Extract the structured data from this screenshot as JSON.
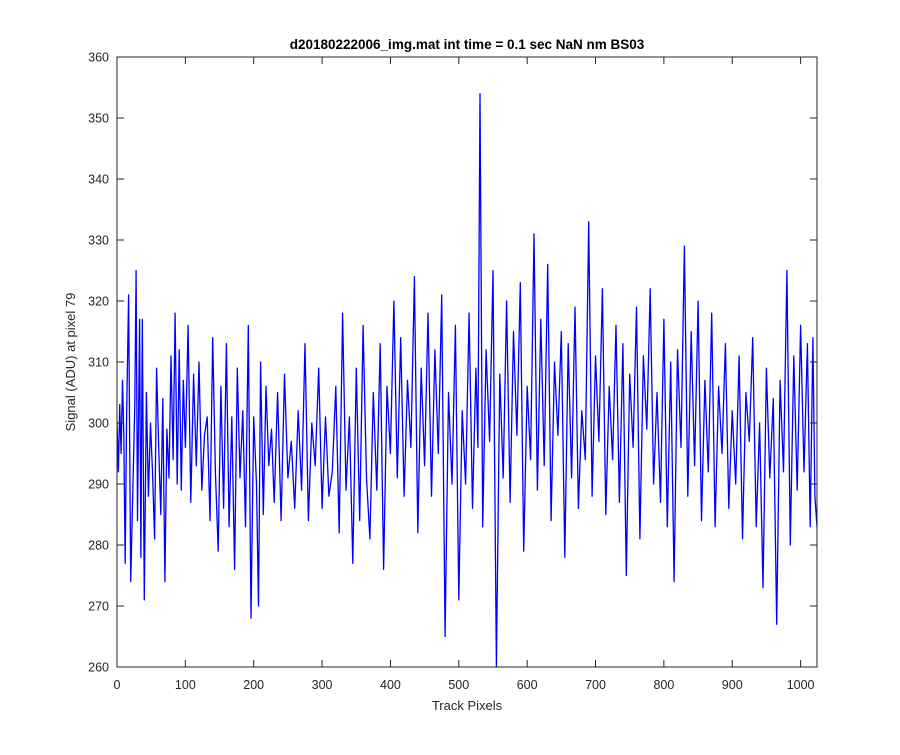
{
  "chart_data": {
    "type": "line",
    "title": "d20180222006_img.mat int time = 0.1 sec  NaN nm BS03",
    "xlabel": "Track Pixels",
    "ylabel": "Signal (ADU) at pixel 79",
    "xlim": [
      0,
      1024
    ],
    "ylim": [
      260,
      360
    ],
    "xticks": [
      0,
      100,
      200,
      300,
      400,
      500,
      600,
      700,
      800,
      900,
      1000
    ],
    "yticks": [
      260,
      270,
      280,
      290,
      300,
      310,
      320,
      330,
      340,
      350,
      360
    ],
    "grid": false,
    "legend": "none",
    "series": [
      {
        "color": "#0000ff",
        "x": [
          0,
          2,
          4,
          6,
          8,
          10,
          12,
          14,
          17,
          20,
          23,
          26,
          28,
          30,
          33,
          35,
          37,
          40,
          43,
          46,
          49,
          52,
          55,
          58,
          61,
          64,
          67,
          70,
          73,
          76,
          79,
          82,
          85,
          88,
          91,
          94,
          97,
          100,
          104,
          108,
          112,
          116,
          120,
          124,
          128,
          132,
          136,
          140,
          144,
          148,
          152,
          156,
          160,
          164,
          168,
          172,
          176,
          180,
          184,
          188,
          192,
          196,
          200,
          204,
          207,
          210,
          214,
          218,
          222,
          226,
          230,
          235,
          240,
          245,
          250,
          255,
          260,
          265,
          270,
          275,
          280,
          285,
          290,
          295,
          300,
          305,
          310,
          315,
          320,
          325,
          330,
          335,
          340,
          345,
          350,
          355,
          360,
          365,
          370,
          375,
          380,
          385,
          390,
          395,
          400,
          405,
          410,
          415,
          420,
          425,
          430,
          435,
          440,
          445,
          450,
          455,
          460,
          465,
          470,
          475,
          480,
          485,
          490,
          495,
          500,
          505,
          510,
          515,
          520,
          525,
          528,
          531,
          535,
          540,
          545,
          550,
          555,
          560,
          565,
          570,
          575,
          580,
          585,
          590,
          595,
          600,
          605,
          610,
          615,
          620,
          625,
          630,
          635,
          640,
          645,
          650,
          655,
          660,
          665,
          670,
          675,
          680,
          685,
          690,
          695,
          700,
          705,
          710,
          715,
          720,
          725,
          730,
          735,
          740,
          745,
          750,
          755,
          760,
          765,
          770,
          775,
          780,
          785,
          790,
          795,
          800,
          805,
          810,
          815,
          820,
          825,
          830,
          835,
          840,
          845,
          850,
          855,
          860,
          865,
          870,
          875,
          880,
          885,
          890,
          895,
          900,
          905,
          910,
          915,
          920,
          925,
          930,
          935,
          940,
          945,
          950,
          955,
          960,
          965,
          970,
          975,
          980,
          985,
          990,
          995,
          1000,
          1005,
          1010,
          1014,
          1018,
          1021,
          1024
        ],
        "y": [
          300,
          292,
          303,
          295,
          307,
          298,
          277,
          301,
          321,
          274,
          288,
          303,
          325,
          284,
          317,
          278,
          317,
          271,
          305,
          288,
          300,
          292,
          281,
          309,
          296,
          285,
          304,
          274,
          299,
          291,
          311,
          294,
          318,
          290,
          312,
          289,
          307,
          296,
          316,
          287,
          308,
          293,
          310,
          289,
          298,
          301,
          284,
          314,
          292,
          279,
          306,
          286,
          313,
          283,
          301,
          276,
          309,
          291,
          302,
          283,
          316,
          268,
          301,
          290,
          270,
          310,
          285,
          306,
          293,
          299,
          287,
          305,
          284,
          308,
          291,
          297,
          286,
          302,
          289,
          313,
          284,
          300,
          293,
          309,
          286,
          301,
          288,
          292,
          306,
          282,
          318,
          289,
          301,
          277,
          309,
          284,
          316,
          291,
          281,
          305,
          289,
          313,
          276,
          306,
          295,
          320,
          291,
          314,
          288,
          307,
          296,
          324,
          282,
          309,
          293,
          318,
          288,
          312,
          295,
          321,
          265,
          305,
          290,
          316,
          271,
          302,
          290,
          318,
          286,
          309,
          296,
          354,
          283,
          312,
          297,
          325,
          260,
          308,
          291,
          320,
          287,
          315,
          298,
          323,
          279,
          306,
          294,
          331,
          289,
          317,
          293,
          326,
          284,
          310,
          298,
          315,
          278,
          313,
          291,
          319,
          286,
          302,
          294,
          333,
          288,
          311,
          297,
          322,
          285,
          306,
          294,
          316,
          287,
          313,
          275,
          308,
          296,
          319,
          281,
          311,
          299,
          322,
          290,
          305,
          287,
          317,
          283,
          310,
          274,
          312,
          296,
          329,
          288,
          315,
          293,
          320,
          284,
          307,
          292,
          318,
          283,
          306,
          295,
          313,
          286,
          302,
          290,
          311,
          281,
          305,
          297,
          314,
          283,
          300,
          273,
          309,
          291,
          304,
          267,
          307,
          292,
          325,
          280,
          311,
          289,
          316,
          292,
          313,
          283,
          314,
          288,
          283
        ]
      }
    ]
  }
}
